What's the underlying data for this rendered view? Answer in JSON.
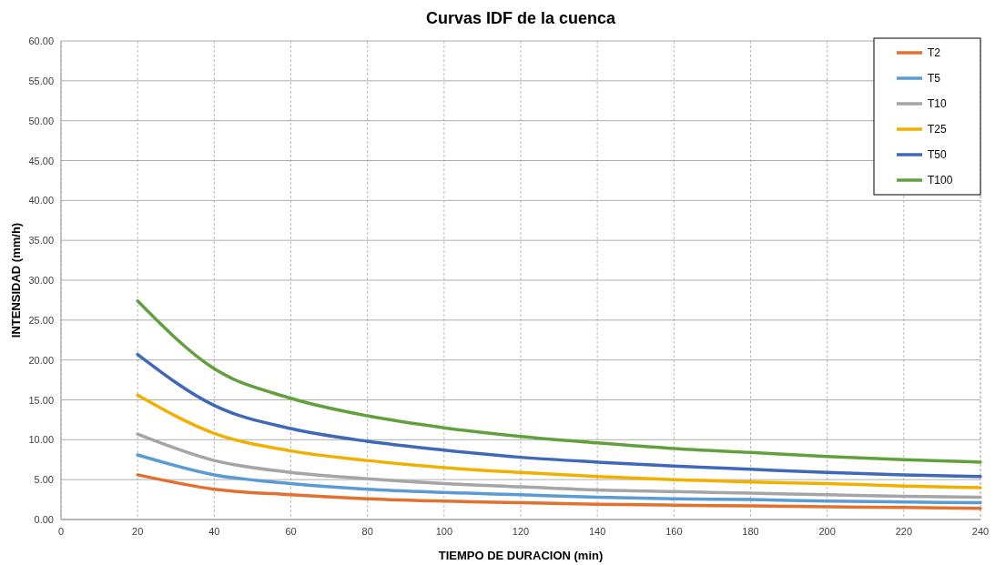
{
  "chart_data": {
    "type": "line",
    "title": "Curvas IDF de la cuenca",
    "xlabel": "TIEMPO DE DURACION  (min)",
    "ylabel": "INTENSIDAD  (mm/h)",
    "x": [
      20,
      40,
      60,
      80,
      100,
      120,
      140,
      160,
      180,
      200,
      220,
      240
    ],
    "series": [
      {
        "name": "T2",
        "color": "#e2702e",
        "values": [
          5.6,
          3.8,
          3.1,
          2.6,
          2.3,
          2.1,
          1.9,
          1.8,
          1.7,
          1.6,
          1.5,
          1.4
        ]
      },
      {
        "name": "T5",
        "color": "#5b9bd5",
        "values": [
          8.1,
          5.6,
          4.5,
          3.8,
          3.4,
          3.1,
          2.8,
          2.6,
          2.5,
          2.3,
          2.2,
          2.1
        ]
      },
      {
        "name": "T10",
        "color": "#a5a5a5",
        "values": [
          10.7,
          7.4,
          5.9,
          5.1,
          4.5,
          4.1,
          3.7,
          3.5,
          3.3,
          3.1,
          2.9,
          2.8
        ]
      },
      {
        "name": "T25",
        "color": "#f0b000",
        "values": [
          15.6,
          10.8,
          8.6,
          7.4,
          6.5,
          5.9,
          5.4,
          5.0,
          4.7,
          4.5,
          4.2,
          4.0
        ]
      },
      {
        "name": "T50",
        "color": "#4068b8",
        "values": [
          20.7,
          14.3,
          11.4,
          9.8,
          8.7,
          7.8,
          7.2,
          6.7,
          6.3,
          5.9,
          5.6,
          5.4
        ]
      },
      {
        "name": "T100",
        "color": "#62a03e",
        "values": [
          27.4,
          18.9,
          15.2,
          13.0,
          11.5,
          10.4,
          9.6,
          8.9,
          8.4,
          7.9,
          7.5,
          7.2
        ]
      }
    ],
    "xlim": [
      0,
      240
    ],
    "xticks": [
      0,
      20,
      40,
      60,
      80,
      100,
      120,
      140,
      160,
      180,
      200,
      220,
      240
    ],
    "ylim": [
      0,
      60
    ],
    "yticks": [
      {
        "value": 0,
        "label": "0.00"
      },
      {
        "value": 5,
        "label": "5.00"
      },
      {
        "value": 10,
        "label": "10.00"
      },
      {
        "value": 15,
        "label": "15.00"
      },
      {
        "value": 20,
        "label": "20.00"
      },
      {
        "value": 25,
        "label": "25.00"
      },
      {
        "value": 30,
        "label": "30.00"
      },
      {
        "value": 35,
        "label": "35.00"
      },
      {
        "value": 40,
        "label": "40.00"
      },
      {
        "value": 45,
        "label": "45.00"
      },
      {
        "value": 50,
        "label": "50.00"
      },
      {
        "value": 55,
        "label": "55.00"
      },
      {
        "value": 60,
        "label": "60.00"
      }
    ],
    "grid": true,
    "legend": "top right",
    "marker": "none",
    "line_style": "solid"
  }
}
